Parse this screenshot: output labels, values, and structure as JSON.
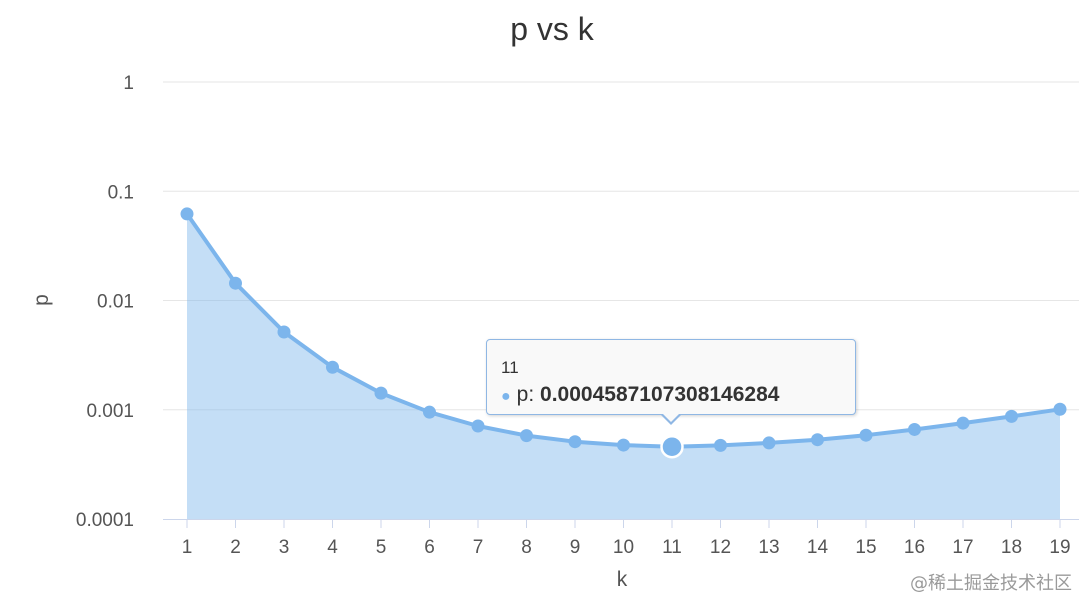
{
  "chart_data": {
    "type": "area",
    "title": "p vs k",
    "xlabel": "k",
    "ylabel": "p",
    "x_scale": "linear",
    "y_scale": "log",
    "ylim": [
      0.0001,
      1
    ],
    "y_ticks": [
      {
        "value": 0.0001,
        "label": "0.0001"
      },
      {
        "value": 0.001,
        "label": "0.001"
      },
      {
        "value": 0.01,
        "label": "0.01"
      },
      {
        "value": 0.1,
        "label": "0.1"
      },
      {
        "value": 1,
        "label": "1"
      }
    ],
    "categories": [
      "1",
      "2",
      "3",
      "4",
      "5",
      "6",
      "7",
      "8",
      "9",
      "10",
      "11",
      "12",
      "13",
      "14",
      "15",
      "16",
      "17",
      "18",
      "19"
    ],
    "series": [
      {
        "name": "p",
        "color": "#7cb5ec",
        "x": [
          1,
          2,
          3,
          4,
          5,
          6,
          7,
          8,
          9,
          10,
          11,
          12,
          13,
          14,
          15,
          16,
          17,
          18,
          19
        ],
        "values": [
          0.062,
          0.0144,
          0.00515,
          0.00245,
          0.00142,
          0.00095,
          0.00071,
          0.00058,
          0.00051,
          0.000475,
          0.0004587107308146284,
          0.000472,
          0.000497,
          0.000532,
          0.000585,
          0.00066,
          0.000755,
          0.00087,
          0.00101
        ]
      }
    ],
    "grid": true,
    "legend": "none",
    "tooltip": {
      "header": "11",
      "series_name": "p:",
      "value": "0.0004587107308146284",
      "highlighted_index": 10
    }
  },
  "watermark": "@稀土掘金技术社区"
}
